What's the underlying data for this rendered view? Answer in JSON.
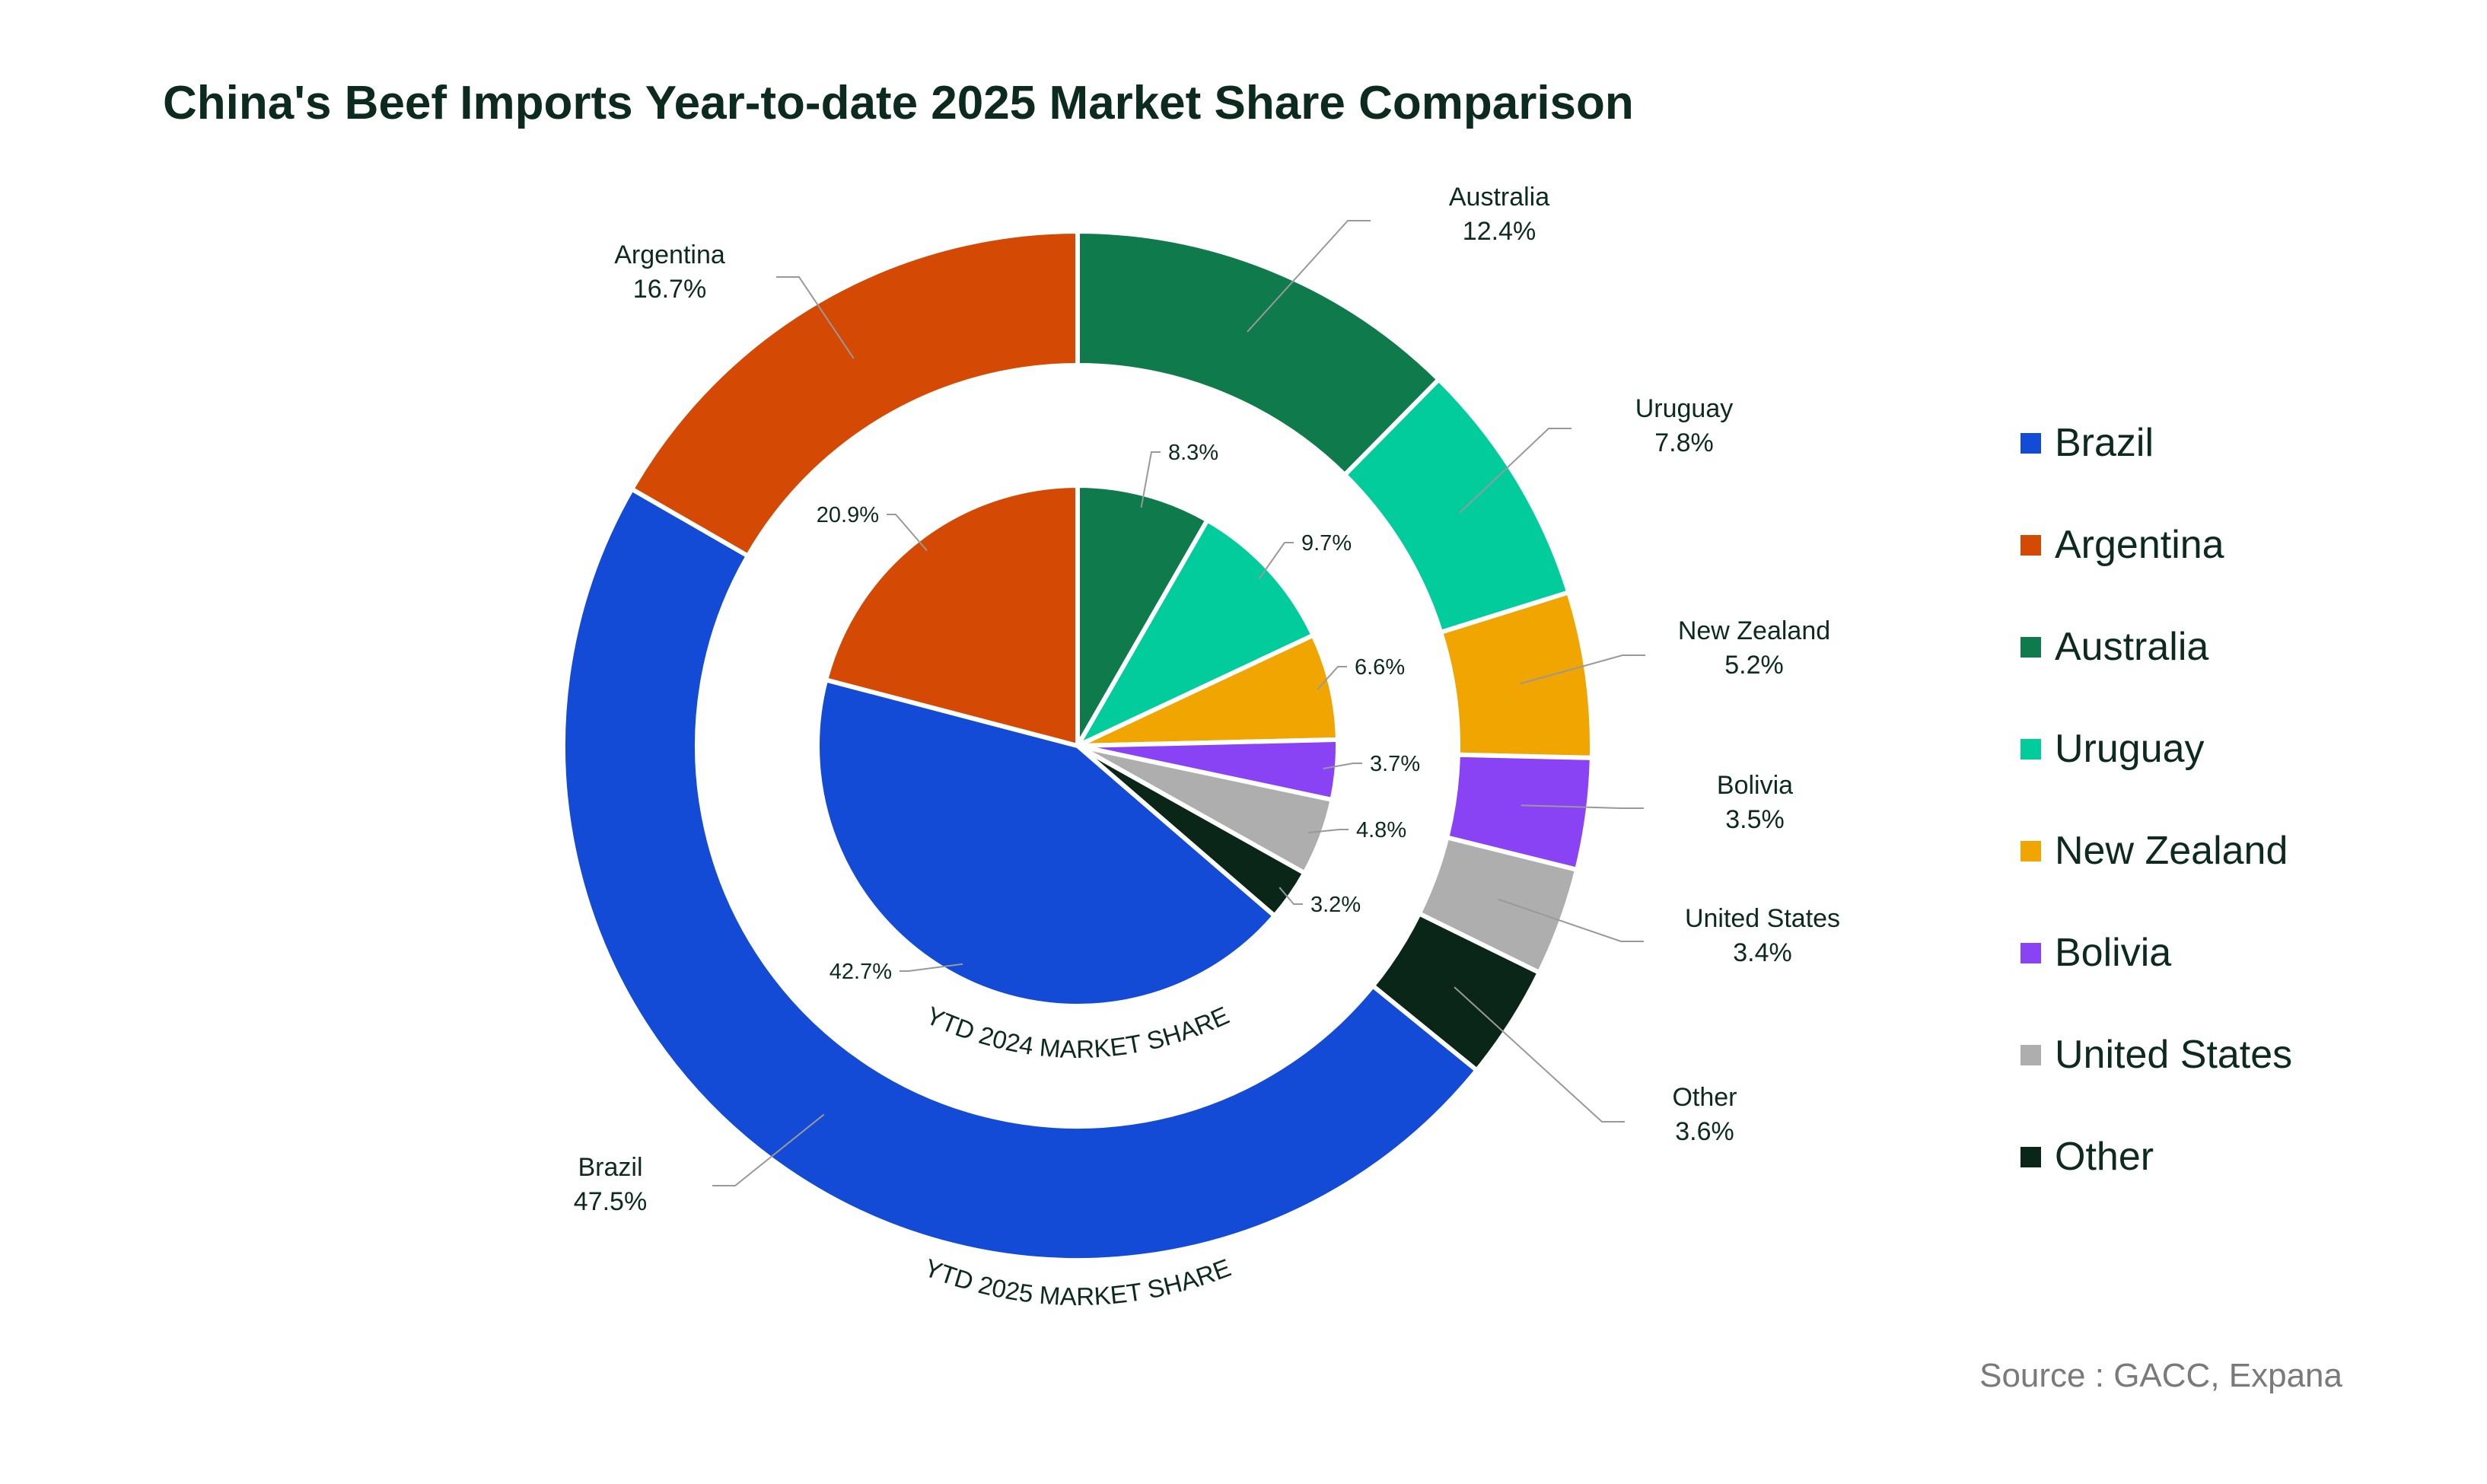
{
  "title": "China's Beef Imports Year-to-date 2025 Market Share Comparison",
  "source": "Source : GACC, Expana",
  "colors": {
    "Brazil": "#134bd6",
    "Argentina": "#d44a04",
    "Australia": "#0f7a4c",
    "Uruguay": "#02cc9c",
    "New Zealand": "#f0a500",
    "Bolivia": "#8943f5",
    "United States": "#aeaeae",
    "Other": "#0a2619"
  },
  "legend": [
    "Brazil",
    "Argentina",
    "Australia",
    "Uruguay",
    "New Zealand",
    "Bolivia",
    "United States",
    "Other"
  ],
  "chart_data": {
    "type": "pie",
    "subtype": "nested donut",
    "title": "China's Beef Imports Year-to-date 2025 Market Share Comparison",
    "categories": [
      "Australia",
      "Uruguay",
      "New Zealand",
      "Bolivia",
      "United States",
      "Other",
      "Brazil",
      "Argentina"
    ],
    "series": [
      {
        "name": "YTD 2025 MARKET SHARE",
        "ring": "outer",
        "values": [
          12.4,
          7.8,
          5.2,
          3.5,
          3.4,
          3.6,
          47.5,
          16.7
        ],
        "labels": [
          "12.4%",
          "7.8%",
          "5.2%",
          "3.5%",
          "3.4%",
          "3.6%",
          "47.5%",
          "16.7%"
        ]
      },
      {
        "name": "YTD 2024 MARKET SHARE",
        "ring": "inner",
        "values": [
          8.3,
          9.7,
          6.6,
          3.7,
          4.8,
          3.2,
          42.7,
          20.9
        ],
        "labels": [
          "8.3%",
          "9.7%",
          "6.6%",
          "3.7%",
          "4.8%",
          "3.2%",
          "42.7%",
          "20.9%"
        ]
      }
    ],
    "legend_position": "right"
  }
}
